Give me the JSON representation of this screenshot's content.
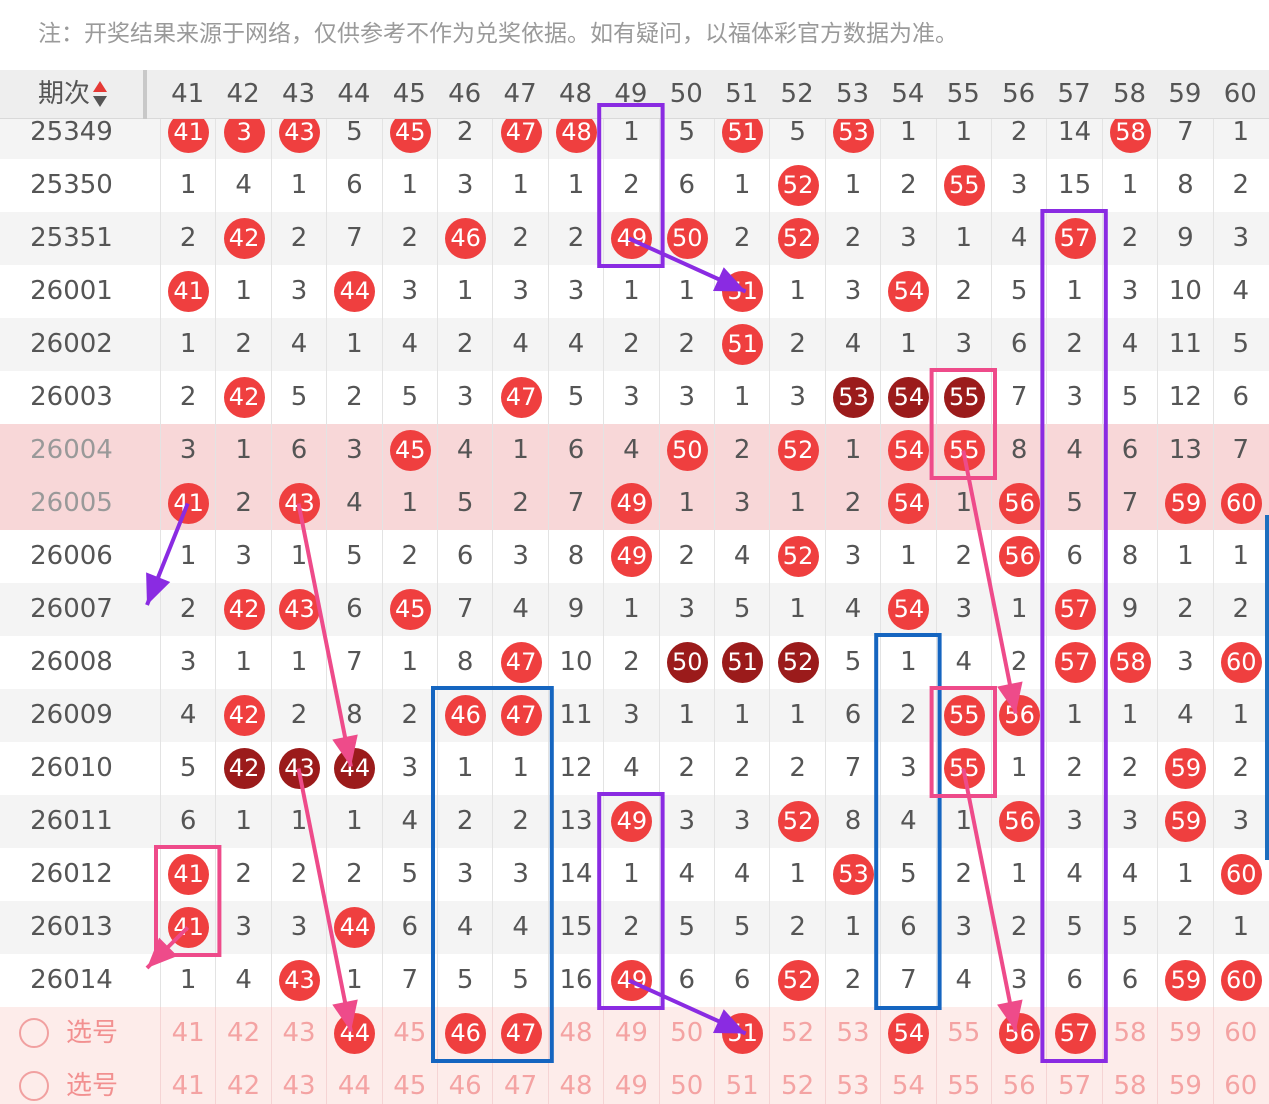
{
  "notice": "注：开奖结果来源于网络，仅供参考不作为兑奖依据。如有疑问，以福体彩官方数据为准。",
  "header": {
    "issue_label": "期次",
    "columns": [
      "41",
      "42",
      "43",
      "44",
      "45",
      "46",
      "47",
      "48",
      "49",
      "50",
      "51",
      "52",
      "53",
      "54",
      "55",
      "56",
      "57",
      "58",
      "59",
      "60"
    ]
  },
  "colors": {
    "ball": "#ef3f3f",
    "ball_dark": "#9b1b1b",
    "highlight_row": "#f8d7d8",
    "select_row": "#fdecea",
    "purple_box": "#8a2be2",
    "blue_box": "#1565c0",
    "pink_box": "#ee4b8a"
  },
  "rows": [
    {
      "issue": "25349",
      "values": [
        41,
        3,
        43,
        5,
        45,
        2,
        47,
        48,
        1,
        5,
        51,
        5,
        53,
        1,
        1,
        2,
        14,
        58,
        7,
        1
      ],
      "balls": [
        1,
        1,
        1,
        0,
        1,
        0,
        1,
        1,
        0,
        0,
        1,
        0,
        1,
        0,
        0,
        0,
        0,
        1,
        0,
        0
      ],
      "dark": [],
      "style": "alt"
    },
    {
      "issue": "25350",
      "values": [
        1,
        4,
        1,
        6,
        1,
        3,
        1,
        1,
        2,
        6,
        1,
        52,
        1,
        2,
        55,
        3,
        15,
        1,
        8,
        2
      ],
      "balls": [
        0,
        0,
        0,
        0,
        0,
        0,
        0,
        0,
        0,
        0,
        0,
        1,
        0,
        0,
        1,
        0,
        0,
        0,
        0,
        0
      ],
      "dark": [],
      "style": "plain"
    },
    {
      "issue": "25351",
      "values": [
        2,
        42,
        2,
        7,
        2,
        46,
        2,
        2,
        49,
        50,
        2,
        52,
        2,
        3,
        1,
        4,
        57,
        2,
        9,
        3
      ],
      "balls": [
        0,
        1,
        0,
        0,
        0,
        1,
        0,
        0,
        1,
        1,
        0,
        1,
        0,
        0,
        0,
        0,
        1,
        0,
        0,
        0
      ],
      "dark": [],
      "style": "alt"
    },
    {
      "issue": "26001",
      "values": [
        41,
        1,
        3,
        44,
        3,
        1,
        3,
        3,
        1,
        1,
        51,
        1,
        3,
        54,
        2,
        5,
        1,
        3,
        10,
        4
      ],
      "balls": [
        1,
        0,
        0,
        1,
        0,
        0,
        0,
        0,
        0,
        0,
        1,
        0,
        0,
        1,
        0,
        0,
        0,
        0,
        0,
        0
      ],
      "dark": [],
      "style": "plain"
    },
    {
      "issue": "26002",
      "values": [
        1,
        2,
        4,
        1,
        4,
        2,
        4,
        4,
        2,
        2,
        51,
        2,
        4,
        1,
        3,
        6,
        2,
        4,
        11,
        5
      ],
      "balls": [
        0,
        0,
        0,
        0,
        0,
        0,
        0,
        0,
        0,
        0,
        1,
        0,
        0,
        0,
        0,
        0,
        0,
        0,
        0,
        0
      ],
      "dark": [],
      "style": "alt"
    },
    {
      "issue": "26003",
      "values": [
        2,
        42,
        5,
        2,
        5,
        3,
        47,
        5,
        3,
        3,
        1,
        3,
        53,
        54,
        55,
        7,
        3,
        5,
        12,
        6
      ],
      "balls": [
        0,
        1,
        0,
        0,
        0,
        0,
        1,
        0,
        0,
        0,
        0,
        0,
        1,
        1,
        1,
        0,
        0,
        0,
        0,
        0
      ],
      "dark": [
        12,
        13,
        14
      ],
      "style": "plain"
    },
    {
      "issue": "26004",
      "values": [
        3,
        1,
        6,
        3,
        45,
        4,
        1,
        6,
        4,
        50,
        2,
        52,
        1,
        54,
        55,
        8,
        4,
        6,
        13,
        7
      ],
      "balls": [
        0,
        0,
        0,
        0,
        1,
        0,
        0,
        0,
        0,
        1,
        0,
        1,
        0,
        1,
        1,
        0,
        0,
        0,
        0,
        0
      ],
      "dark": [],
      "style": "hl"
    },
    {
      "issue": "26005",
      "values": [
        41,
        2,
        43,
        4,
        1,
        5,
        2,
        7,
        49,
        1,
        3,
        1,
        2,
        54,
        1,
        56,
        5,
        7,
        59,
        60
      ],
      "balls": [
        1,
        0,
        1,
        0,
        0,
        0,
        0,
        0,
        1,
        0,
        0,
        0,
        0,
        1,
        0,
        1,
        0,
        0,
        1,
        1
      ],
      "dark": [],
      "style": "hl"
    },
    {
      "issue": "26006",
      "values": [
        1,
        3,
        1,
        5,
        2,
        6,
        3,
        8,
        49,
        2,
        4,
        52,
        3,
        1,
        2,
        56,
        6,
        8,
        1,
        1
      ],
      "balls": [
        0,
        0,
        0,
        0,
        0,
        0,
        0,
        0,
        1,
        0,
        0,
        1,
        0,
        0,
        0,
        1,
        0,
        0,
        0,
        0
      ],
      "dark": [],
      "style": "plain"
    },
    {
      "issue": "26007",
      "values": [
        2,
        42,
        43,
        6,
        45,
        7,
        4,
        9,
        1,
        3,
        5,
        1,
        4,
        54,
        3,
        1,
        57,
        9,
        2,
        2
      ],
      "balls": [
        0,
        1,
        1,
        0,
        1,
        0,
        0,
        0,
        0,
        0,
        0,
        0,
        0,
        1,
        0,
        0,
        1,
        0,
        0,
        0
      ],
      "dark": [],
      "style": "alt"
    },
    {
      "issue": "26008",
      "values": [
        3,
        1,
        1,
        7,
        1,
        8,
        47,
        10,
        2,
        50,
        51,
        52,
        5,
        1,
        4,
        2,
        57,
        58,
        3,
        60
      ],
      "balls": [
        0,
        0,
        0,
        0,
        0,
        0,
        1,
        0,
        0,
        1,
        1,
        1,
        0,
        0,
        0,
        0,
        1,
        1,
        0,
        1
      ],
      "dark": [
        9,
        10,
        11
      ],
      "style": "plain"
    },
    {
      "issue": "26009",
      "values": [
        4,
        42,
        2,
        8,
        2,
        46,
        47,
        11,
        3,
        1,
        1,
        1,
        6,
        2,
        55,
        56,
        1,
        1,
        4,
        1
      ],
      "balls": [
        0,
        1,
        0,
        0,
        0,
        1,
        1,
        0,
        0,
        0,
        0,
        0,
        0,
        0,
        1,
        1,
        0,
        0,
        0,
        0
      ],
      "dark": [],
      "style": "alt"
    },
    {
      "issue": "26010",
      "values": [
        5,
        42,
        43,
        44,
        3,
        1,
        1,
        12,
        4,
        2,
        2,
        2,
        7,
        3,
        55,
        1,
        2,
        2,
        59,
        2
      ],
      "balls": [
        0,
        1,
        1,
        1,
        0,
        0,
        0,
        0,
        0,
        0,
        0,
        0,
        0,
        0,
        1,
        0,
        0,
        0,
        1,
        0
      ],
      "dark": [
        1,
        2,
        3
      ],
      "style": "plain"
    },
    {
      "issue": "26011",
      "values": [
        6,
        1,
        1,
        1,
        4,
        2,
        2,
        13,
        49,
        3,
        3,
        52,
        8,
        4,
        1,
        56,
        3,
        3,
        59,
        3
      ],
      "balls": [
        0,
        0,
        0,
        0,
        0,
        0,
        0,
        0,
        1,
        0,
        0,
        1,
        0,
        0,
        0,
        1,
        0,
        0,
        1,
        0
      ],
      "dark": [],
      "style": "alt"
    },
    {
      "issue": "26012",
      "values": [
        41,
        2,
        2,
        2,
        5,
        3,
        3,
        14,
        1,
        4,
        4,
        1,
        53,
        5,
        2,
        1,
        4,
        4,
        1,
        60
      ],
      "balls": [
        1,
        0,
        0,
        0,
        0,
        0,
        0,
        0,
        0,
        0,
        0,
        0,
        1,
        0,
        0,
        0,
        0,
        0,
        0,
        1
      ],
      "dark": [],
      "style": "plain"
    },
    {
      "issue": "26013",
      "values": [
        41,
        3,
        3,
        44,
        6,
        4,
        4,
        15,
        2,
        5,
        5,
        2,
        1,
        6,
        3,
        2,
        5,
        5,
        2,
        1
      ],
      "balls": [
        1,
        0,
        0,
        1,
        0,
        0,
        0,
        0,
        0,
        0,
        0,
        0,
        0,
        0,
        0,
        0,
        0,
        0,
        0,
        0
      ],
      "dark": [],
      "style": "alt"
    },
    {
      "issue": "26014",
      "values": [
        1,
        4,
        43,
        1,
        7,
        5,
        5,
        16,
        49,
        6,
        6,
        52,
        2,
        7,
        4,
        3,
        6,
        6,
        59,
        60
      ],
      "balls": [
        0,
        0,
        1,
        0,
        0,
        0,
        0,
        0,
        1,
        0,
        0,
        1,
        0,
        0,
        0,
        0,
        0,
        0,
        1,
        1
      ],
      "dark": [],
      "style": "plain"
    }
  ],
  "select_rows": [
    {
      "label": "选号",
      "values": [
        41,
        42,
        43,
        44,
        45,
        46,
        47,
        48,
        49,
        50,
        51,
        52,
        53,
        54,
        55,
        56,
        57,
        58,
        59,
        60
      ],
      "balls": [
        0,
        0,
        0,
        1,
        0,
        1,
        1,
        0,
        0,
        0,
        1,
        0,
        0,
        1,
        0,
        1,
        1,
        0,
        0,
        0
      ]
    },
    {
      "label": "选号",
      "values": [
        41,
        42,
        43,
        44,
        45,
        46,
        47,
        48,
        49,
        50,
        51,
        52,
        53,
        54,
        55,
        56,
        57,
        58,
        59,
        60
      ],
      "balls": [
        0,
        0,
        0,
        0,
        0,
        0,
        0,
        0,
        0,
        0,
        0,
        0,
        0,
        0,
        0,
        0,
        0,
        0,
        0,
        0
      ]
    }
  ]
}
